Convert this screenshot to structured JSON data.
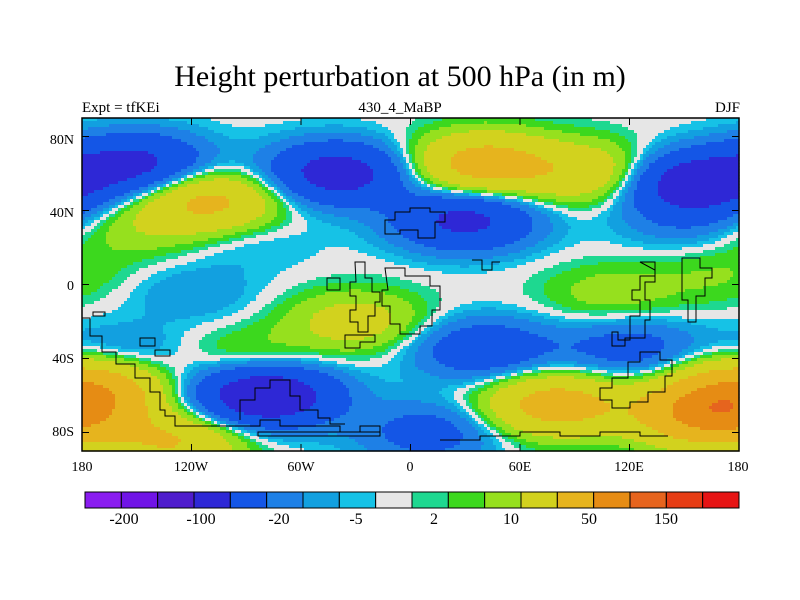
{
  "title": "Height perturbation at 500 hPa (in m)",
  "subtitle_left": "Expt = tfKEi",
  "subtitle_center": "430_4_MaBP",
  "subtitle_right": "DJF",
  "chart_data": {
    "type": "heatmap",
    "title": "Height perturbation at 500 hPa (in m)",
    "x_ticks": [
      "180",
      "120W",
      "60W",
      "0",
      "60E",
      "120E",
      "180"
    ],
    "y_ticks": [
      "80N",
      "40N",
      "0",
      "40S",
      "80S"
    ],
    "xlim": [
      -180,
      180
    ],
    "ylim": [
      -90,
      90
    ],
    "colorbar": {
      "labels": [
        "-200",
        "-100",
        "-20",
        "-5",
        "2",
        "10",
        "50",
        "150"
      ],
      "colors": [
        "#8a1cf0",
        "#7014e6",
        "#4f1ccc",
        "#2e28d6",
        "#1456e6",
        "#1e80e6",
        "#12a0e0",
        "#16c2e6",
        "#e6e6e6",
        "#1ed890",
        "#3cd81e",
        "#96e01e",
        "#d2d21e",
        "#e6b41e",
        "#e68c14",
        "#e6641e",
        "#e63c14",
        "#e61414"
      ]
    },
    "field_centers": [
      {
        "lon": -150,
        "lat": 65,
        "value": -60
      },
      {
        "lon": -110,
        "lat": 45,
        "value": 60
      },
      {
        "lon": -150,
        "lat": 30,
        "value": 15
      },
      {
        "lon": -90,
        "lat": 25,
        "value": -8
      },
      {
        "lon": -40,
        "lat": 60,
        "value": -70
      },
      {
        "lon": 40,
        "lat": 65,
        "value": 70
      },
      {
        "lon": 30,
        "lat": 35,
        "value": -60
      },
      {
        "lon": 100,
        "lat": 60,
        "value": 40
      },
      {
        "lon": 155,
        "lat": 55,
        "value": -80
      },
      {
        "lon": 150,
        "lat": 35,
        "value": -15
      },
      {
        "lon": -120,
        "lat": -5,
        "value": -10
      },
      {
        "lon": -30,
        "lat": -20,
        "value": 30
      },
      {
        "lon": 110,
        "lat": -5,
        "value": 15
      },
      {
        "lon": 170,
        "lat": 5,
        "value": 10
      },
      {
        "lon": -160,
        "lat": -40,
        "value": -20
      },
      {
        "lon": -90,
        "lat": -40,
        "value": 15
      },
      {
        "lon": 40,
        "lat": -35,
        "value": -40
      },
      {
        "lon": 120,
        "lat": -35,
        "value": -30
      },
      {
        "lon": -175,
        "lat": -55,
        "value": 80
      },
      {
        "lon": -80,
        "lat": -60,
        "value": -90
      },
      {
        "lon": 80,
        "lat": -65,
        "value": 70
      },
      {
        "lon": 165,
        "lat": -70,
        "value": 120
      },
      {
        "lon": -130,
        "lat": -85,
        "value": 50
      },
      {
        "lon": 10,
        "lat": -80,
        "value": -30
      }
    ]
  }
}
